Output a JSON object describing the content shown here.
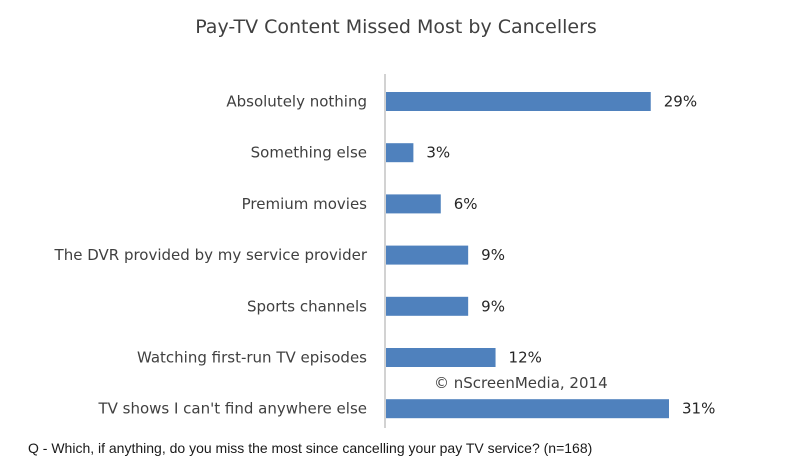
{
  "chart_data": {
    "type": "bar",
    "orientation": "horizontal",
    "title": "Pay-TV Content Missed Most by Cancellers",
    "categories": [
      "Absolutely nothing",
      "Something else",
      "Premium movies",
      "The DVR provided by my service provider",
      "Sports channels",
      "Watching first-run TV episodes",
      "TV shows I can't find anywhere else"
    ],
    "values": [
      29,
      3,
      6,
      9,
      9,
      12,
      31
    ],
    "value_labels": [
      "29%",
      "3%",
      "6%",
      "9%",
      "9%",
      "12%",
      "31%"
    ],
    "xlabel": "",
    "ylabel": "",
    "xlim": [
      0,
      35
    ],
    "grid": false,
    "bar_color": "#4f81bd"
  },
  "annotations": {
    "copyright": "© nScreenMedia, 2014",
    "footnote": "Q - Which, if anything, do you miss the most since cancelling your pay TV service? (n=168)"
  }
}
